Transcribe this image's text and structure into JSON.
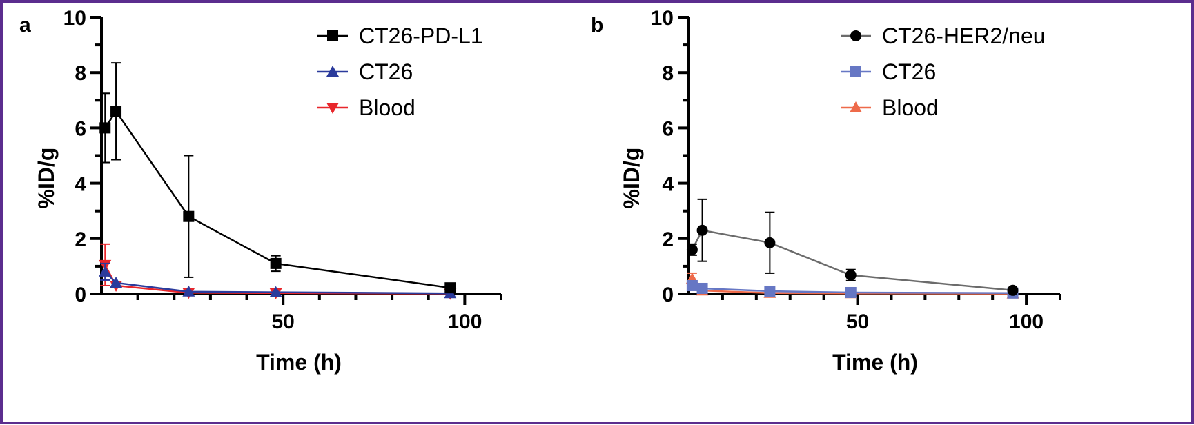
{
  "figure": {
    "border_color": "#5b2d8e"
  },
  "chart_data": [
    {
      "panel": "a",
      "type": "line",
      "xlabel": "Time (h)",
      "ylabel": "%ID/g",
      "xlim": [
        0,
        110
      ],
      "ylim": [
        0,
        10
      ],
      "xticks": [
        50,
        100
      ],
      "yticks": [
        0,
        2,
        4,
        6,
        8,
        10
      ],
      "grid": false,
      "legend_position": "top-right",
      "series": [
        {
          "name": "CT26-PD-L1",
          "color": "#000000",
          "marker": "square",
          "x": [
            1,
            4,
            24,
            48,
            96
          ],
          "y": [
            6.0,
            6.6,
            2.8,
            1.1,
            0.22
          ],
          "err": [
            1.25,
            1.75,
            2.2,
            0.28,
            0.05
          ]
        },
        {
          "name": "CT26",
          "color": "#2b3b9c",
          "marker": "triangle-up",
          "x": [
            1,
            4,
            24,
            48,
            96
          ],
          "y": [
            0.8,
            0.4,
            0.08,
            0.06,
            0.02
          ],
          "err": [
            0.3,
            0.1,
            0.03,
            0.02,
            0.01
          ]
        },
        {
          "name": "Blood",
          "color": "#e8262b",
          "marker": "triangle-down",
          "x": [
            1,
            4,
            24,
            48,
            96
          ],
          "y": [
            1.05,
            0.3,
            0.04,
            0.03,
            0.01
          ],
          "err": [
            0.75,
            0.08,
            0.02,
            0.01,
            0.01
          ]
        }
      ]
    },
    {
      "panel": "b",
      "type": "line",
      "xlabel": "Time (h)",
      "ylabel": "%ID/g",
      "xlim": [
        0,
        110
      ],
      "ylim": [
        0,
        10
      ],
      "xticks": [
        50,
        100
      ],
      "yticks": [
        0,
        2,
        4,
        6,
        8,
        10
      ],
      "grid": false,
      "legend_position": "top-right",
      "series": [
        {
          "name": "CT26-HER2/neu",
          "color": "#000000",
          "line_color": "#6b6b6b",
          "marker": "circle",
          "x": [
            1,
            4,
            24,
            48,
            96
          ],
          "y": [
            1.6,
            2.3,
            1.85,
            0.68,
            0.13
          ],
          "err": [
            0.2,
            1.12,
            1.1,
            0.2,
            0.05
          ]
        },
        {
          "name": "CT26",
          "color": "#6677c4",
          "marker": "square",
          "x": [
            1,
            4,
            24,
            48,
            96
          ],
          "y": [
            0.3,
            0.2,
            0.1,
            0.05,
            0.03
          ],
          "err": [
            0.12,
            0.05,
            0.03,
            0.02,
            0.01
          ]
        },
        {
          "name": "Blood",
          "color": "#ee6a4a",
          "marker": "triangle-up",
          "x": [
            1,
            4,
            24,
            48,
            96
          ],
          "y": [
            0.55,
            0.12,
            0.03,
            0.02,
            0.01
          ],
          "err": [
            0.2,
            0.04,
            0.01,
            0.01,
            0.005
          ]
        }
      ]
    }
  ]
}
